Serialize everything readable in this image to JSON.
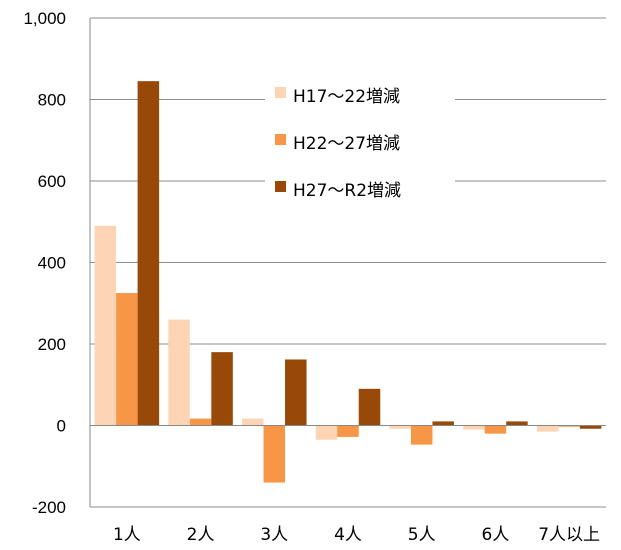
{
  "chart_data": {
    "type": "bar",
    "categories": [
      "1人",
      "2人",
      "3人",
      "4人",
      "5人",
      "6人",
      "7人以上"
    ],
    "series": [
      {
        "name": "H17～22増減",
        "color": "#FDD5B4",
        "values": [
          490,
          260,
          17,
          -35,
          -8,
          -10,
          -15
        ]
      },
      {
        "name": "H22～27増減",
        "color": "#F79646",
        "values": [
          325,
          17,
          -140,
          -28,
          -47,
          -20,
          -3
        ]
      },
      {
        "name": "H27～R2増減",
        "color": "#984807",
        "values": [
          845,
          180,
          162,
          90,
          10,
          10,
          -8
        ]
      }
    ],
    "ylim": [
      -200,
      1000
    ],
    "yticks": [
      -200,
      0,
      200,
      400,
      600,
      800,
      1000
    ],
    "ytick_labels": [
      "-200",
      "0",
      "200",
      "400",
      "600",
      "800",
      "1,000"
    ],
    "grid": true,
    "legend_position": "top-right",
    "title": "",
    "xlabel": "",
    "ylabel": ""
  }
}
